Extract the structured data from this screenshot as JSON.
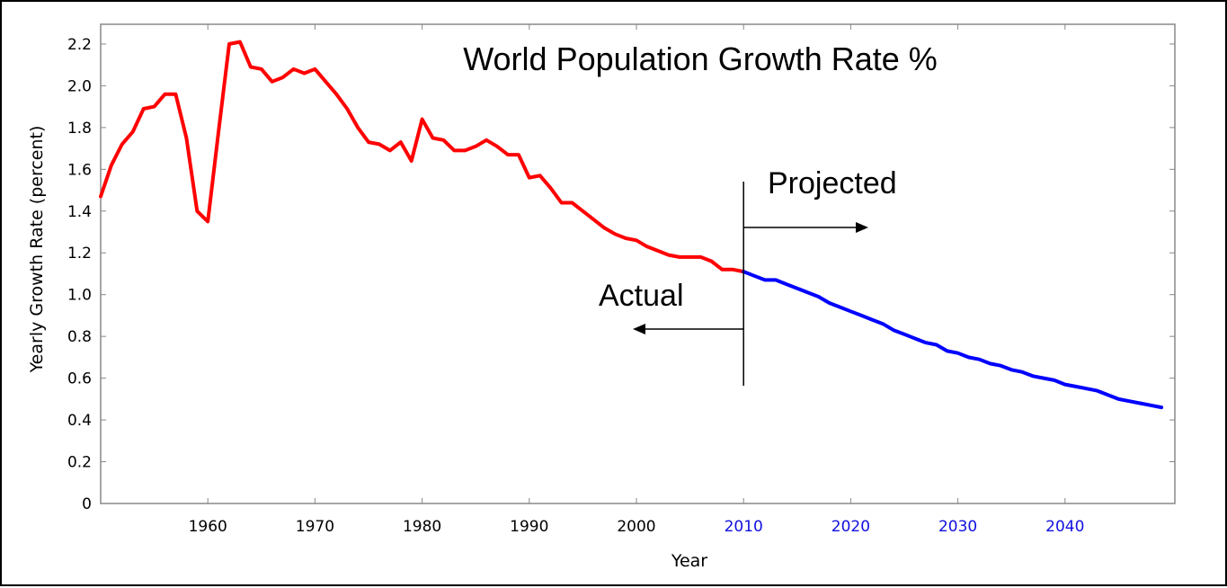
{
  "chart_data": {
    "type": "line",
    "title": "World Population Growth Rate %",
    "xlabel": "Year",
    "ylabel": "Yearly Growth Rate (percent)",
    "xlim": [
      1950,
      2050
    ],
    "ylim": [
      0,
      2.25
    ],
    "grid": false,
    "legend": null,
    "x_ticks": [
      {
        "value": 1960,
        "label": "1960",
        "color": "#000000"
      },
      {
        "value": 1970,
        "label": "1970",
        "color": "#000000"
      },
      {
        "value": 1980,
        "label": "1980",
        "color": "#000000"
      },
      {
        "value": 1990,
        "label": "1990",
        "color": "#000000"
      },
      {
        "value": 2000,
        "label": "2000",
        "color": "#000000"
      },
      {
        "value": 2010,
        "label": "2010",
        "color": "#1010e0"
      },
      {
        "value": 2020,
        "label": "2020",
        "color": "#1010e0"
      },
      {
        "value": 2030,
        "label": "2030",
        "color": "#1010e0"
      },
      {
        "value": 2040,
        "label": "2040",
        "color": "#1010e0"
      }
    ],
    "y_ticks": [
      {
        "value": 0,
        "label": "0"
      },
      {
        "value": 0.2,
        "label": "0.2"
      },
      {
        "value": 0.4,
        "label": "0.4"
      },
      {
        "value": 0.6,
        "label": "0.6"
      },
      {
        "value": 0.8,
        "label": "0.8"
      },
      {
        "value": 1.0,
        "label": "1.0"
      },
      {
        "value": 1.2,
        "label": "1.2"
      },
      {
        "value": 1.4,
        "label": "1.4"
      },
      {
        "value": 1.6,
        "label": "1.6"
      },
      {
        "value": 1.8,
        "label": "1.8"
      },
      {
        "value": 2.0,
        "label": "2.0"
      },
      {
        "value": 2.2,
        "label": "2.2"
      }
    ],
    "series": [
      {
        "name": "Actual",
        "color": "#ff0000",
        "x": [
          1950,
          1951,
          1952,
          1953,
          1954,
          1955,
          1956,
          1957,
          1958,
          1959,
          1960,
          1961,
          1962,
          1963,
          1964,
          1965,
          1966,
          1967,
          1968,
          1969,
          1970,
          1971,
          1972,
          1973,
          1974,
          1975,
          1976,
          1977,
          1978,
          1979,
          1980,
          1981,
          1982,
          1983,
          1984,
          1985,
          1986,
          1987,
          1988,
          1989,
          1990,
          1991,
          1992,
          1993,
          1994,
          1995,
          1996,
          1997,
          1998,
          1999,
          2000,
          2001,
          2002,
          2003,
          2004,
          2005,
          2006,
          2007,
          2008,
          2009,
          2010
        ],
        "values": [
          1.47,
          1.62,
          1.72,
          1.78,
          1.89,
          1.9,
          1.96,
          1.96,
          1.75,
          1.4,
          1.35,
          1.78,
          2.2,
          2.21,
          2.09,
          2.08,
          2.02,
          2.04,
          2.08,
          2.06,
          2.08,
          2.02,
          1.96,
          1.89,
          1.8,
          1.73,
          1.72,
          1.69,
          1.73,
          1.64,
          1.84,
          1.75,
          1.74,
          1.69,
          1.69,
          1.71,
          1.74,
          1.71,
          1.67,
          1.67,
          1.56,
          1.57,
          1.51,
          1.44,
          1.44,
          1.4,
          1.36,
          1.32,
          1.29,
          1.27,
          1.26,
          1.23,
          1.21,
          1.19,
          1.18,
          1.18,
          1.18,
          1.16,
          1.12,
          1.12,
          1.11
        ]
      },
      {
        "name": "Projected",
        "color": "#0000ff",
        "x": [
          2010,
          2011,
          2012,
          2013,
          2014,
          2015,
          2016,
          2017,
          2018,
          2019,
          2020,
          2021,
          2022,
          2023,
          2024,
          2025,
          2026,
          2027,
          2028,
          2029,
          2030,
          2031,
          2032,
          2033,
          2034,
          2035,
          2036,
          2037,
          2038,
          2039,
          2040,
          2041,
          2042,
          2043,
          2044,
          2045,
          2046,
          2047,
          2048,
          2049
        ],
        "values": [
          1.11,
          1.09,
          1.07,
          1.07,
          1.05,
          1.03,
          1.01,
          0.99,
          0.96,
          0.94,
          0.92,
          0.9,
          0.88,
          0.86,
          0.83,
          0.81,
          0.79,
          0.77,
          0.76,
          0.73,
          0.72,
          0.7,
          0.69,
          0.67,
          0.66,
          0.64,
          0.63,
          0.61,
          0.6,
          0.59,
          0.57,
          0.56,
          0.55,
          0.54,
          0.52,
          0.5,
          0.49,
          0.48,
          0.47,
          0.46
        ]
      }
    ],
    "annotations": {
      "divider_year": 2010,
      "projected": {
        "label": "Projected",
        "arrow": "right"
      },
      "actual": {
        "label": "Actual",
        "arrow": "left"
      }
    }
  }
}
